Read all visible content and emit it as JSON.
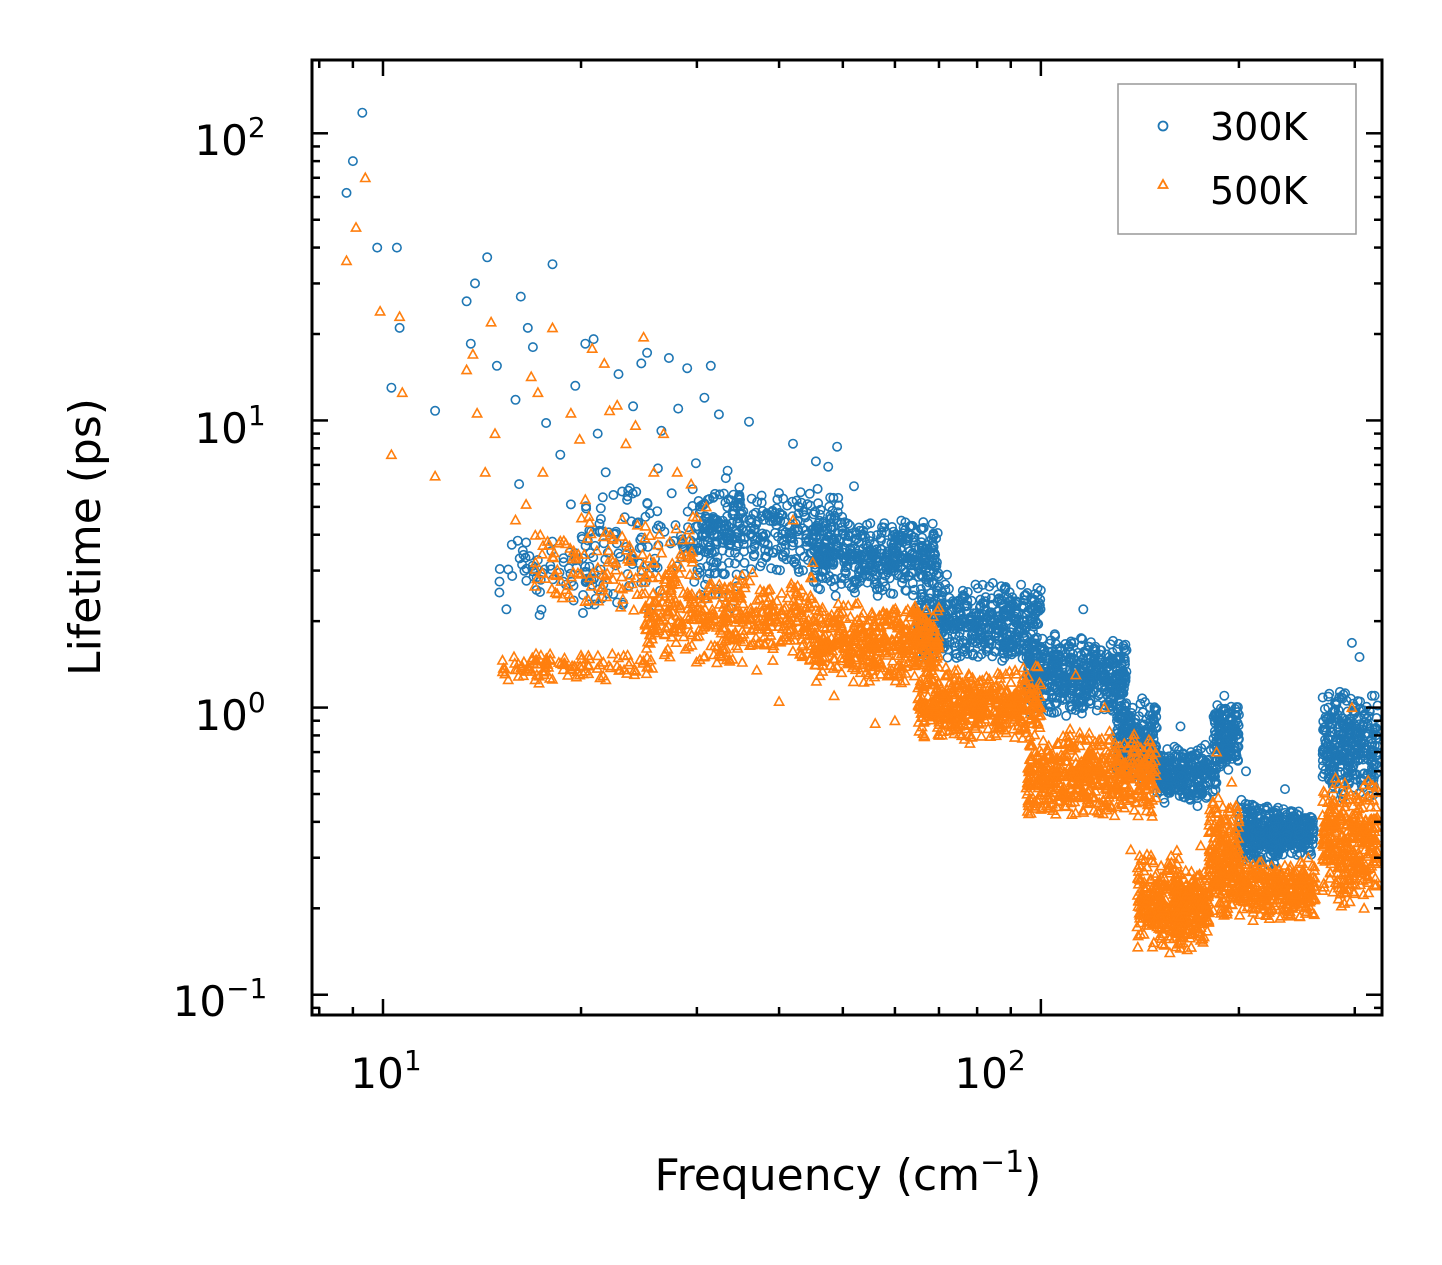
{
  "chart_data": {
    "type": "scatter",
    "xscale": "log",
    "yscale": "log",
    "xlim": [
      7.8,
      330
    ],
    "ylim": [
      0.085,
      180
    ],
    "xlabel": "Frequency (cm",
    "xlabel_sup": "−1",
    "xlabel_suffix": ")",
    "ylabel": "Lifetime (ps)",
    "x_ticks": [
      {
        "value": 10,
        "base": "10",
        "exp": "1"
      },
      {
        "value": 100,
        "base": "10",
        "exp": "2"
      }
    ],
    "y_ticks": [
      {
        "value": 0.1,
        "base": "10",
        "exp": "−1"
      },
      {
        "value": 1,
        "base": "10",
        "exp": "0"
      },
      {
        "value": 10,
        "base": "10",
        "exp": "1"
      },
      {
        "value": 100,
        "base": "10",
        "exp": "2"
      }
    ],
    "legend": {
      "position": "top-right",
      "entries": [
        "300K",
        "500K"
      ]
    },
    "series": [
      {
        "name": "300K",
        "marker": "circle",
        "color": "#1f77b4",
        "points": [
          [
            8.8,
            62
          ],
          [
            9.0,
            80
          ],
          [
            9.3,
            118
          ],
          [
            9.8,
            40
          ],
          [
            10.3,
            13
          ],
          [
            10.5,
            40
          ],
          [
            10.6,
            21
          ],
          [
            12.0,
            10.8
          ],
          [
            13.4,
            26
          ],
          [
            13.6,
            18.5
          ],
          [
            13.8,
            30
          ],
          [
            14.4,
            37
          ],
          [
            14.9,
            15.5
          ],
          [
            15.4,
            2.2
          ],
          [
            15.9,
            11.8
          ],
          [
            16.1,
            6.0
          ],
          [
            16.2,
            27
          ],
          [
            16.6,
            21
          ],
          [
            16.9,
            18
          ],
          [
            17.3,
            2.1
          ],
          [
            17.7,
            9.8
          ],
          [
            18.1,
            35
          ],
          [
            18.6,
            7.6
          ],
          [
            19.3,
            5.1
          ],
          [
            19.6,
            13.2
          ],
          [
            20.3,
            18.5
          ],
          [
            20.9,
            19.2
          ],
          [
            21.2,
            9.0
          ],
          [
            21.8,
            6.6
          ],
          [
            22.4,
            5.5
          ],
          [
            22.8,
            14.5
          ],
          [
            23.3,
            4.6
          ],
          [
            24.0,
            11.2
          ],
          [
            24.7,
            15.8
          ],
          [
            25.2,
            17.2
          ],
          [
            25.9,
            3.3
          ],
          [
            26.5,
            9.2
          ],
          [
            27.2,
            16.5
          ],
          [
            28.1,
            11.0
          ],
          [
            29.0,
            15.2
          ],
          [
            29.9,
            7.1
          ],
          [
            30.8,
            12.0
          ],
          [
            31.5,
            15.5
          ],
          [
            32.4,
            10.5
          ],
          [
            33.2,
            6.3
          ],
          [
            34.8,
            5.5
          ],
          [
            36.0,
            9.9
          ],
          [
            39.0,
            4.8
          ],
          [
            42.0,
            8.3
          ],
          [
            45.5,
            7.2
          ],
          [
            47.5,
            6.9
          ],
          [
            49.0,
            8.1
          ],
          [
            52.0,
            5.9
          ],
          [
            60.0,
            4.0
          ],
          [
            66.0,
            4.2
          ],
          [
            72.0,
            2.9
          ],
          [
            82.0,
            2.3
          ],
          [
            105.0,
            1.8
          ],
          [
            116.0,
            2.2
          ],
          [
            127.0,
            1.5
          ],
          [
            150.0,
            0.85
          ],
          [
            163.0,
            0.86
          ],
          [
            190.0,
            1.1
          ],
          [
            205.0,
            0.6
          ],
          [
            235.0,
            0.52
          ],
          [
            297.0,
            1.68
          ],
          [
            305.0,
            1.5
          ],
          [
            323.0,
            0.85
          ]
        ],
        "bands": [
          {
            "x": [
              15.0,
              22.0
            ],
            "low": 2.0,
            "high": 4.5,
            "count": 70
          },
          {
            "x": [
              20.0,
              35.0
            ],
            "low": 2.0,
            "high": 7.0,
            "count": 160
          },
          {
            "x": [
              30.0,
              50.0
            ],
            "low": 2.8,
            "high": 6.0,
            "count": 320
          },
          {
            "x": [
              45.0,
              70.0
            ],
            "low": 2.4,
            "high": 4.6,
            "count": 420
          },
          {
            "x": [
              65.0,
              100.0
            ],
            "low": 1.4,
            "high": 2.8,
            "count": 500
          },
          {
            "x": [
              95.0,
              135.0
            ],
            "low": 0.9,
            "high": 1.8,
            "count": 520
          },
          {
            "x": [
              130.0,
              150.0
            ],
            "low": 0.55,
            "high": 1.1,
            "count": 240
          },
          {
            "x": [
              150.0,
              185.0
            ],
            "low": 0.45,
            "high": 0.75,
            "count": 280
          },
          {
            "x": [
              183.0,
              200.0
            ],
            "low": 0.6,
            "high": 1.05,
            "count": 160
          },
          {
            "x": [
              200.0,
              230.0
            ],
            "low": 0.27,
            "high": 0.48,
            "count": 260
          },
          {
            "x": [
              225.0,
              260.0
            ],
            "low": 0.3,
            "high": 0.45,
            "count": 220
          },
          {
            "x": [
              268.0,
              325.0
            ],
            "low": 0.45,
            "high": 1.2,
            "count": 320
          }
        ]
      },
      {
        "name": "500K",
        "marker": "triangle",
        "color": "#ff7f0e",
        "points": [
          [
            8.8,
            36
          ],
          [
            9.1,
            47
          ],
          [
            9.4,
            70
          ],
          [
            9.9,
            24
          ],
          [
            10.3,
            7.6
          ],
          [
            10.6,
            23
          ],
          [
            10.7,
            12.5
          ],
          [
            12.0,
            6.4
          ],
          [
            13.4,
            15
          ],
          [
            13.7,
            17
          ],
          [
            13.9,
            10.6
          ],
          [
            14.3,
            6.6
          ],
          [
            14.6,
            22
          ],
          [
            14.8,
            9.0
          ],
          [
            15.5,
            1.25
          ],
          [
            15.9,
            4.5
          ],
          [
            16.5,
            5.1
          ],
          [
            16.8,
            14.2
          ],
          [
            17.2,
            12.5
          ],
          [
            17.5,
            6.6
          ],
          [
            18.1,
            21
          ],
          [
            18.6,
            3.8
          ],
          [
            19.3,
            10.6
          ],
          [
            19.9,
            8.6
          ],
          [
            20.3,
            5.3
          ],
          [
            20.8,
            17.8
          ],
          [
            21.7,
            15.8
          ],
          [
            22.1,
            10.8
          ],
          [
            22.7,
            11.3
          ],
          [
            23.4,
            8.3
          ],
          [
            24.2,
            9.6
          ],
          [
            24.9,
            19.5
          ],
          [
            25.8,
            6.6
          ],
          [
            26.7,
            9.0
          ],
          [
            28.0,
            6.6
          ],
          [
            29.4,
            6.0
          ],
          [
            31.0,
            5.0
          ],
          [
            33.0,
            1.6
          ],
          [
            35.0,
            2.5
          ],
          [
            37.0,
            1.35
          ],
          [
            40.0,
            1.05
          ],
          [
            42.0,
            4.5
          ],
          [
            45.0,
            3.2
          ],
          [
            48.5,
            1.1
          ],
          [
            52.0,
            1.9
          ],
          [
            56.0,
            0.88
          ],
          [
            60.0,
            0.9
          ],
          [
            70.0,
            0.8
          ],
          [
            78.0,
            0.75
          ],
          [
            90.0,
            1.05
          ],
          [
            100.0,
            1.2
          ],
          [
            113.0,
            1.3
          ],
          [
            125.0,
            1.0
          ],
          [
            137.0,
            0.32
          ],
          [
            148.0,
            0.22
          ],
          [
            157.0,
            0.14
          ],
          [
            175.0,
            0.33
          ],
          [
            185.0,
            0.7
          ],
          [
            195.0,
            0.55
          ],
          [
            215.0,
            0.23
          ],
          [
            255.0,
            0.3
          ],
          [
            297.0,
            1.0
          ],
          [
            310.0,
            0.2
          ],
          [
            323.0,
            0.45
          ]
        ],
        "bands": [
          {
            "x": [
              15.0,
              26.0
            ],
            "low": 1.2,
            "high": 1.6,
            "count": 110
          },
          {
            "x": [
              17.0,
              30.0
            ],
            "low": 2.0,
            "high": 5.0,
            "count": 150
          },
          {
            "x": [
              25.0,
              45.0
            ],
            "low": 1.4,
            "high": 3.0,
            "count": 420
          },
          {
            "x": [
              45.0,
              70.0
            ],
            "low": 1.2,
            "high": 2.4,
            "count": 480
          },
          {
            "x": [
              65.0,
              100.0
            ],
            "low": 0.75,
            "high": 1.4,
            "count": 520
          },
          {
            "x": [
              95.0,
              150.0
            ],
            "low": 0.4,
            "high": 0.85,
            "count": 560
          },
          {
            "x": [
              140.0,
              165.0
            ],
            "low": 0.14,
            "high": 0.32,
            "count": 260
          },
          {
            "x": [
              160.0,
              180.0
            ],
            "low": 0.14,
            "high": 0.28,
            "count": 220
          },
          {
            "x": [
              180.0,
              200.0
            ],
            "low": 0.18,
            "high": 0.5,
            "count": 240
          },
          {
            "x": [
              200.0,
              262.0
            ],
            "low": 0.18,
            "high": 0.3,
            "count": 320
          },
          {
            "x": [
              268.0,
              325.0
            ],
            "low": 0.2,
            "high": 0.6,
            "count": 340
          }
        ]
      }
    ]
  }
}
